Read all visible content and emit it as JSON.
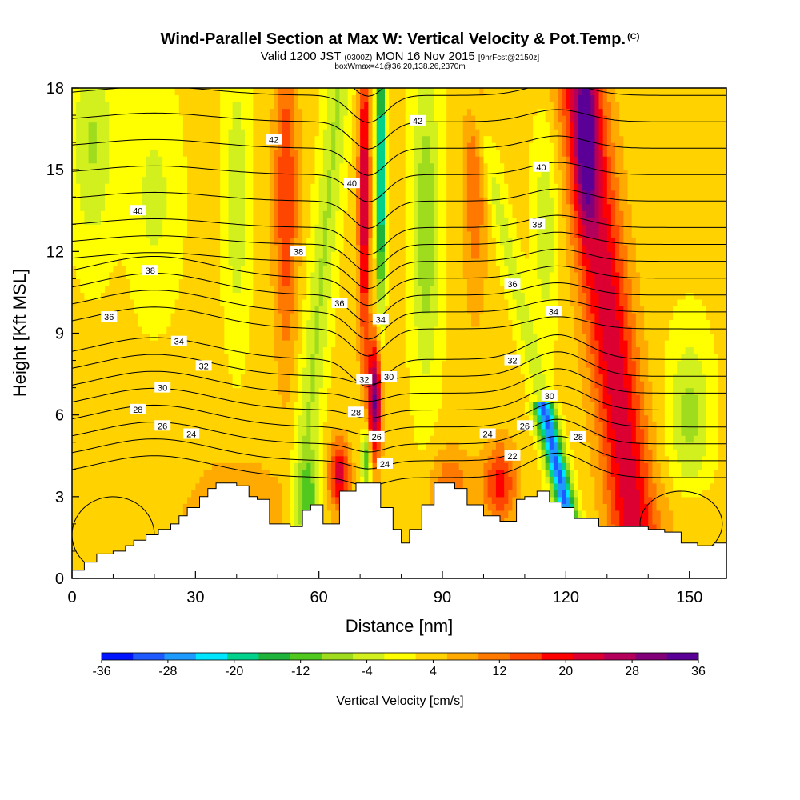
{
  "header": {
    "title": "Wind-Parallel Section at Max W: Vertical Velocity & Pot.Temp.",
    "title_mark": "(C)",
    "subtitle_a": "Valid 1200 JST ",
    "subtitle_b": "(0300Z)",
    "subtitle_c": " MON 16 Nov 2015 ",
    "subtitle_d": "[9hrFcst@2150z]",
    "note": "boxWmax=41@36.20,138.26,2370m"
  },
  "chart_data": {
    "type": "heatmap",
    "xlabel": "Distance [nm]",
    "ylabel": "Height [Kft MSL]",
    "xlim": [
      0,
      159
    ],
    "ylim": [
      0,
      18
    ],
    "x_ticks": [
      0,
      30,
      60,
      90,
      120,
      150
    ],
    "y_ticks": [
      0,
      3,
      6,
      9,
      12,
      15,
      18
    ],
    "colorbar": {
      "label": "Vertical Velocity [cm/s]",
      "ticks": [
        -36,
        -28,
        -20,
        -12,
        -4,
        4,
        12,
        20,
        28,
        36
      ],
      "range": [
        -36,
        36
      ],
      "colors": [
        "#0014ff",
        "#1e5aff",
        "#1e9bff",
        "#00e6ff",
        "#00d28c",
        "#1eb43c",
        "#50c81e",
        "#a0dc1e",
        "#d2f01e",
        "#ffff00",
        "#ffd200",
        "#ffaa00",
        "#ff7800",
        "#ff4600",
        "#ff0000",
        "#dc0032",
        "#b4005a",
        "#820078",
        "#5a0096"
      ]
    },
    "potential_temperature_labels": [
      {
        "value": 42,
        "x": 49,
        "y": 16.1
      },
      {
        "value": 42,
        "x": 84,
        "y": 16.8
      },
      {
        "value": 40,
        "x": 16,
        "y": 13.5
      },
      {
        "value": 40,
        "x": 68,
        "y": 14.5
      },
      {
        "value": 40,
        "x": 114,
        "y": 15.1
      },
      {
        "value": 38,
        "x": 19,
        "y": 11.3
      },
      {
        "value": 38,
        "x": 55,
        "y": 12.0
      },
      {
        "value": 38,
        "x": 113,
        "y": 13.0
      },
      {
        "value": 36,
        "x": 9,
        "y": 9.6
      },
      {
        "value": 36,
        "x": 65,
        "y": 10.1
      },
      {
        "value": 36,
        "x": 107,
        "y": 10.8
      },
      {
        "value": 34,
        "x": 26,
        "y": 8.7
      },
      {
        "value": 34,
        "x": 75,
        "y": 9.5
      },
      {
        "value": 34,
        "x": 117,
        "y": 9.8
      },
      {
        "value": 32,
        "x": 32,
        "y": 7.8
      },
      {
        "value": 32,
        "x": 71,
        "y": 7.3
      },
      {
        "value": 32,
        "x": 107,
        "y": 8.0
      },
      {
        "value": 30,
        "x": 22,
        "y": 7.0
      },
      {
        "value": 30,
        "x": 77,
        "y": 7.4
      },
      {
        "value": 30,
        "x": 116,
        "y": 6.7
      },
      {
        "value": 28,
        "x": 16,
        "y": 6.2
      },
      {
        "value": 28,
        "x": 69,
        "y": 6.1
      },
      {
        "value": 28,
        "x": 123,
        "y": 5.2
      },
      {
        "value": 26,
        "x": 22,
        "y": 5.6
      },
      {
        "value": 26,
        "x": 74,
        "y": 5.2
      },
      {
        "value": 26,
        "x": 110,
        "y": 5.6
      },
      {
        "value": 24,
        "x": 29,
        "y": 5.3
      },
      {
        "value": 24,
        "x": 76,
        "y": 4.2
      },
      {
        "value": 24,
        "x": 101,
        "y": 5.3
      },
      {
        "value": 22,
        "x": 107,
        "y": 4.5
      }
    ],
    "terrain_heights": [
      [
        0,
        0.3
      ],
      [
        3,
        0.6
      ],
      [
        6,
        0.9
      ],
      [
        10,
        1.0
      ],
      [
        13,
        1.2
      ],
      [
        15,
        1.4
      ],
      [
        18,
        1.6
      ],
      [
        21,
        1.8
      ],
      [
        24,
        2.0
      ],
      [
        26,
        2.3
      ],
      [
        28,
        2.6
      ],
      [
        31,
        3.0
      ],
      [
        33,
        3.3
      ],
      [
        35,
        3.5
      ],
      [
        38,
        3.5
      ],
      [
        40,
        3.4
      ],
      [
        43,
        3.0
      ],
      [
        45,
        2.9
      ],
      [
        48,
        2.0
      ],
      [
        53,
        1.9
      ],
      [
        56,
        2.5
      ],
      [
        58,
        2.7
      ],
      [
        61,
        2.0
      ],
      [
        65,
        3.2
      ],
      [
        69,
        3.5
      ],
      [
        72,
        3.5
      ],
      [
        75,
        2.6
      ],
      [
        78,
        1.8
      ],
      [
        80,
        1.3
      ],
      [
        82,
        1.8
      ],
      [
        85,
        2.7
      ],
      [
        88,
        3.5
      ],
      [
        91,
        3.5
      ],
      [
        93,
        3.3
      ],
      [
        96,
        2.7
      ],
      [
        100,
        2.3
      ],
      [
        104,
        2.1
      ],
      [
        108,
        2.9
      ],
      [
        110,
        3.0
      ],
      [
        113,
        3.2
      ],
      [
        116,
        2.8
      ],
      [
        119,
        2.6
      ],
      [
        122,
        2.2
      ],
      [
        125,
        2.2
      ],
      [
        128,
        1.9
      ],
      [
        131,
        1.9
      ],
      [
        137,
        1.9
      ],
      [
        140,
        1.8
      ],
      [
        144,
        1.7
      ],
      [
        148,
        1.3
      ],
      [
        152,
        1.2
      ],
      [
        156,
        1.3
      ],
      [
        159,
        1.3
      ]
    ]
  }
}
